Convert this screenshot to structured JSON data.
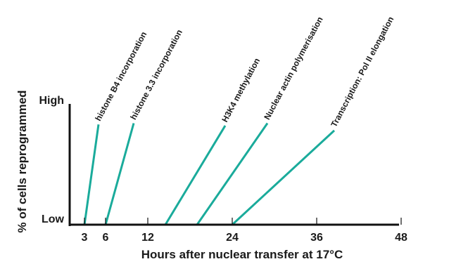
{
  "chart_data": {
    "type": "line",
    "xlabel": "Hours after nuclear transfer at 17°C",
    "ylabel": "% of cells reprogrammed",
    "x_ticks": [
      {
        "value": 3,
        "label": "3"
      },
      {
        "value": 6,
        "label": "6"
      },
      {
        "value": 12,
        "label": "12"
      },
      {
        "value": 24,
        "label": "24"
      },
      {
        "value": 36,
        "label": "36"
      },
      {
        "value": 48,
        "label": "48"
      }
    ],
    "y_levels": {
      "high": "High",
      "low": "Low"
    },
    "y_range": [
      0,
      1
    ],
    "line_color": "#1aab9b",
    "series": [
      {
        "label": "histone B4 incorporation",
        "start_hour": 3,
        "end_hour": 5,
        "end_level": 0.83
      },
      {
        "label": "histone 3.3 incorporation",
        "start_hour": 6,
        "end_hour": 10,
        "end_level": 0.84
      },
      {
        "label": "H3K4 methylation",
        "start_hour": 14.5,
        "end_hour": 23,
        "end_level": 0.82
      },
      {
        "label": "Nuclear actin polymerisation",
        "start_hour": 19,
        "end_hour": 29,
        "end_level": 0.84
      },
      {
        "label": "Transcription: Pol II elongation",
        "start_hour": 24,
        "end_hour": 38.5,
        "end_level": 0.78
      }
    ]
  }
}
